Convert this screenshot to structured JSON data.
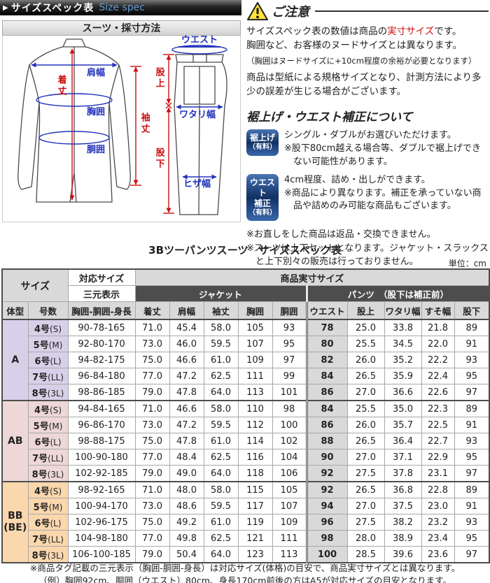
{
  "header": {
    "arrow": "▶",
    "title": "サイズスペック表",
    "subtitle": "Size spec"
  },
  "colors": {
    "accent_blue": "#2233bb",
    "accent_red": "#cc1111",
    "size_spec_blue": "#6699cc",
    "header_dark": "#4d4d4d",
    "header_gray": "#d9d9d9",
    "section_a": "#d8d0e8",
    "section_ab": "#eed7d7",
    "section_bb": "#fbd7ae",
    "badge_blue_top": "#4a75b5",
    "badge_blue_bottom": "#3a68ad"
  },
  "diagram": {
    "panel_title": "スーツ・採寸方法",
    "labels": {
      "shoulder": "肩幅",
      "length": "着丈",
      "chest": "胸囲",
      "waist_jacket": "胴囲",
      "sleeve": "袖丈",
      "waist_pants": "ウエスト",
      "rise": "股上",
      "thigh": "ワタリ幅",
      "inseam": "股下",
      "knee": "ヒザ幅"
    }
  },
  "notice": {
    "title": "ご注意",
    "p1_pre": "サイズスペック表の数値は商品の",
    "p1_em": "実寸サイズ",
    "p1_post": "です。",
    "p2": "胸囲など、お客様のヌードサイズとは異なります。",
    "p3": "（胸囲はヌードサイズに+10cm程度の余裕が必要となります）",
    "p4": "商品は型紙による規格サイズとなり、計測方法により多少の誤差が生じる場合がございます。"
  },
  "alteration": {
    "title": "裾上げ・ウエスト補正について",
    "items": [
      {
        "badge": [
          "裾上げ",
          "（有料）"
        ],
        "lines": [
          "シングル・ダブルがお選びいただけます。",
          "※股下80cm越える場合等、ダブルで裾上げできない可能性があります。"
        ]
      },
      {
        "badge": [
          "ウエスト",
          "補正",
          "（有料）"
        ],
        "lines": [
          "4cm程度、詰め・出しができます。",
          "※商品により異なります。補正を承っていない商品や詰めのみ可能な商品もございます。"
        ]
      }
    ],
    "notes": [
      "※お直しをした商品は返品・交換できません。",
      "※スーツは上下セットとなります。ジャケット・スラックスと上下別々の販売は行っておりません。"
    ]
  },
  "table": {
    "title": "3Bツーパンツスーツ　サイズスペック表",
    "unit": "単位：cm",
    "header": {
      "size": "サイズ",
      "taiou": "対応サイズ",
      "jissun": "商品実寸サイズ",
      "sangen": "三元表示",
      "jacket": "ジャケット",
      "pants": "パンツ　（股下は補正前）",
      "taikei": "体型",
      "gosu": "号数",
      "sangen_sub": "胸囲-胴囲-身長",
      "cols_jacket": [
        "着丈",
        "肩幅",
        "袖丈",
        "胸囲",
        "胴囲"
      ],
      "cols_pants": [
        "ウエスト",
        "股上",
        "ワタリ幅",
        "すそ幅",
        "股下"
      ]
    },
    "sections": [
      {
        "label_lines": [
          "A"
        ],
        "color": "#d8d0e8",
        "rows": [
          {
            "gou": "4号",
            "code": "(S)",
            "sangen": "90-78-165",
            "values": [
              "71.0",
              "45.4",
              "58.0",
              "105",
              "93",
              "78",
              "25.0",
              "33.8",
              "21.8",
              "89"
            ]
          },
          {
            "gou": "5号",
            "code": "(M)",
            "sangen": "92-80-170",
            "values": [
              "73.0",
              "46.0",
              "59.5",
              "107",
              "95",
              "80",
              "25.5",
              "34.5",
              "22.0",
              "91"
            ]
          },
          {
            "gou": "6号",
            "code": "(L)",
            "sangen": "94-82-175",
            "values": [
              "75.0",
              "46.6",
              "61.0",
              "109",
              "97",
              "82",
              "26.0",
              "35.2",
              "22.2",
              "93"
            ]
          },
          {
            "gou": "7号",
            "code": "(LL)",
            "sangen": "96-84-180",
            "values": [
              "77.0",
              "47.2",
              "62.5",
              "111",
              "99",
              "84",
              "26.5",
              "35.9",
              "22.4",
              "95"
            ]
          },
          {
            "gou": "8号",
            "code": "(3L)",
            "sangen": "98-86-185",
            "values": [
              "79.0",
              "47.8",
              "64.0",
              "113",
              "101",
              "86",
              "27.0",
              "36.6",
              "22.6",
              "97"
            ]
          }
        ]
      },
      {
        "label_lines": [
          "AB"
        ],
        "color": "#eed7d7",
        "rows": [
          {
            "gou": "4号",
            "code": "(S)",
            "sangen": "94-84-165",
            "values": [
              "71.0",
              "46.6",
              "58.0",
              "110",
              "98",
              "84",
              "25.5",
              "35.0",
              "22.3",
              "89"
            ]
          },
          {
            "gou": "5号",
            "code": "(M)",
            "sangen": "96-86-170",
            "values": [
              "73.0",
              "47.2",
              "59.5",
              "112",
              "100",
              "86",
              "26.0",
              "35.7",
              "22.5",
              "91"
            ]
          },
          {
            "gou": "6号",
            "code": "(L)",
            "sangen": "98-88-175",
            "values": [
              "75.0",
              "47.8",
              "61.0",
              "114",
              "102",
              "88",
              "26.5",
              "36.4",
              "22.7",
              "93"
            ]
          },
          {
            "gou": "7号",
            "code": "(LL)",
            "sangen": "100-90-180",
            "values": [
              "77.0",
              "48.4",
              "62.5",
              "116",
              "104",
              "90",
              "27.0",
              "37.1",
              "22.9",
              "95"
            ]
          },
          {
            "gou": "8号",
            "code": "(3L)",
            "sangen": "102-92-185",
            "values": [
              "79.0",
              "49.0",
              "64.0",
              "118",
              "106",
              "92",
              "27.5",
              "37.8",
              "23.1",
              "97"
            ]
          }
        ]
      },
      {
        "label_lines": [
          "BB",
          "(BE)"
        ],
        "color": "#fbd7ae",
        "rows": [
          {
            "gou": "4号",
            "code": "(S)",
            "sangen": "98-92-165",
            "values": [
              "71.0",
              "48.0",
              "58.0",
              "115",
              "105",
              "92",
              "26.5",
              "36.8",
              "22.8",
              "89"
            ]
          },
          {
            "gou": "5号",
            "code": "(M)",
            "sangen": "100-94-170",
            "values": [
              "73.0",
              "48.6",
              "59.5",
              "117",
              "107",
              "94",
              "27.0",
              "37.5",
              "23.0",
              "91"
            ]
          },
          {
            "gou": "6号",
            "code": "(L)",
            "sangen": "102-96-175",
            "values": [
              "75.0",
              "49.2",
              "61.0",
              "119",
              "109",
              "96",
              "27.5",
              "38.2",
              "23.2",
              "93"
            ]
          },
          {
            "gou": "7号",
            "code": "(LL)",
            "sangen": "104-98-180",
            "values": [
              "77.0",
              "49.8",
              "62.5",
              "121",
              "111",
              "98",
              "28.0",
              "38.9",
              "23.4",
              "95"
            ]
          },
          {
            "gou": "8号",
            "code": "(3L)",
            "sangen": "106-100-185",
            "values": [
              "79.0",
              "50.4",
              "64.0",
              "123",
              "113",
              "100",
              "28.5",
              "39.6",
              "23.6",
              "97"
            ]
          }
        ]
      }
    ],
    "footnotes": [
      "※商品タグ記載の三元表示（胸囲-胴囲-身長）は対応サイズ(体格)の目安で、商品実寸サイズとは異なります。",
      "（例）胸囲92cm、胴囲（ウエスト）80cm、身長170cm前後の方はA5が対応サイズの目安となります。"
    ]
  }
}
